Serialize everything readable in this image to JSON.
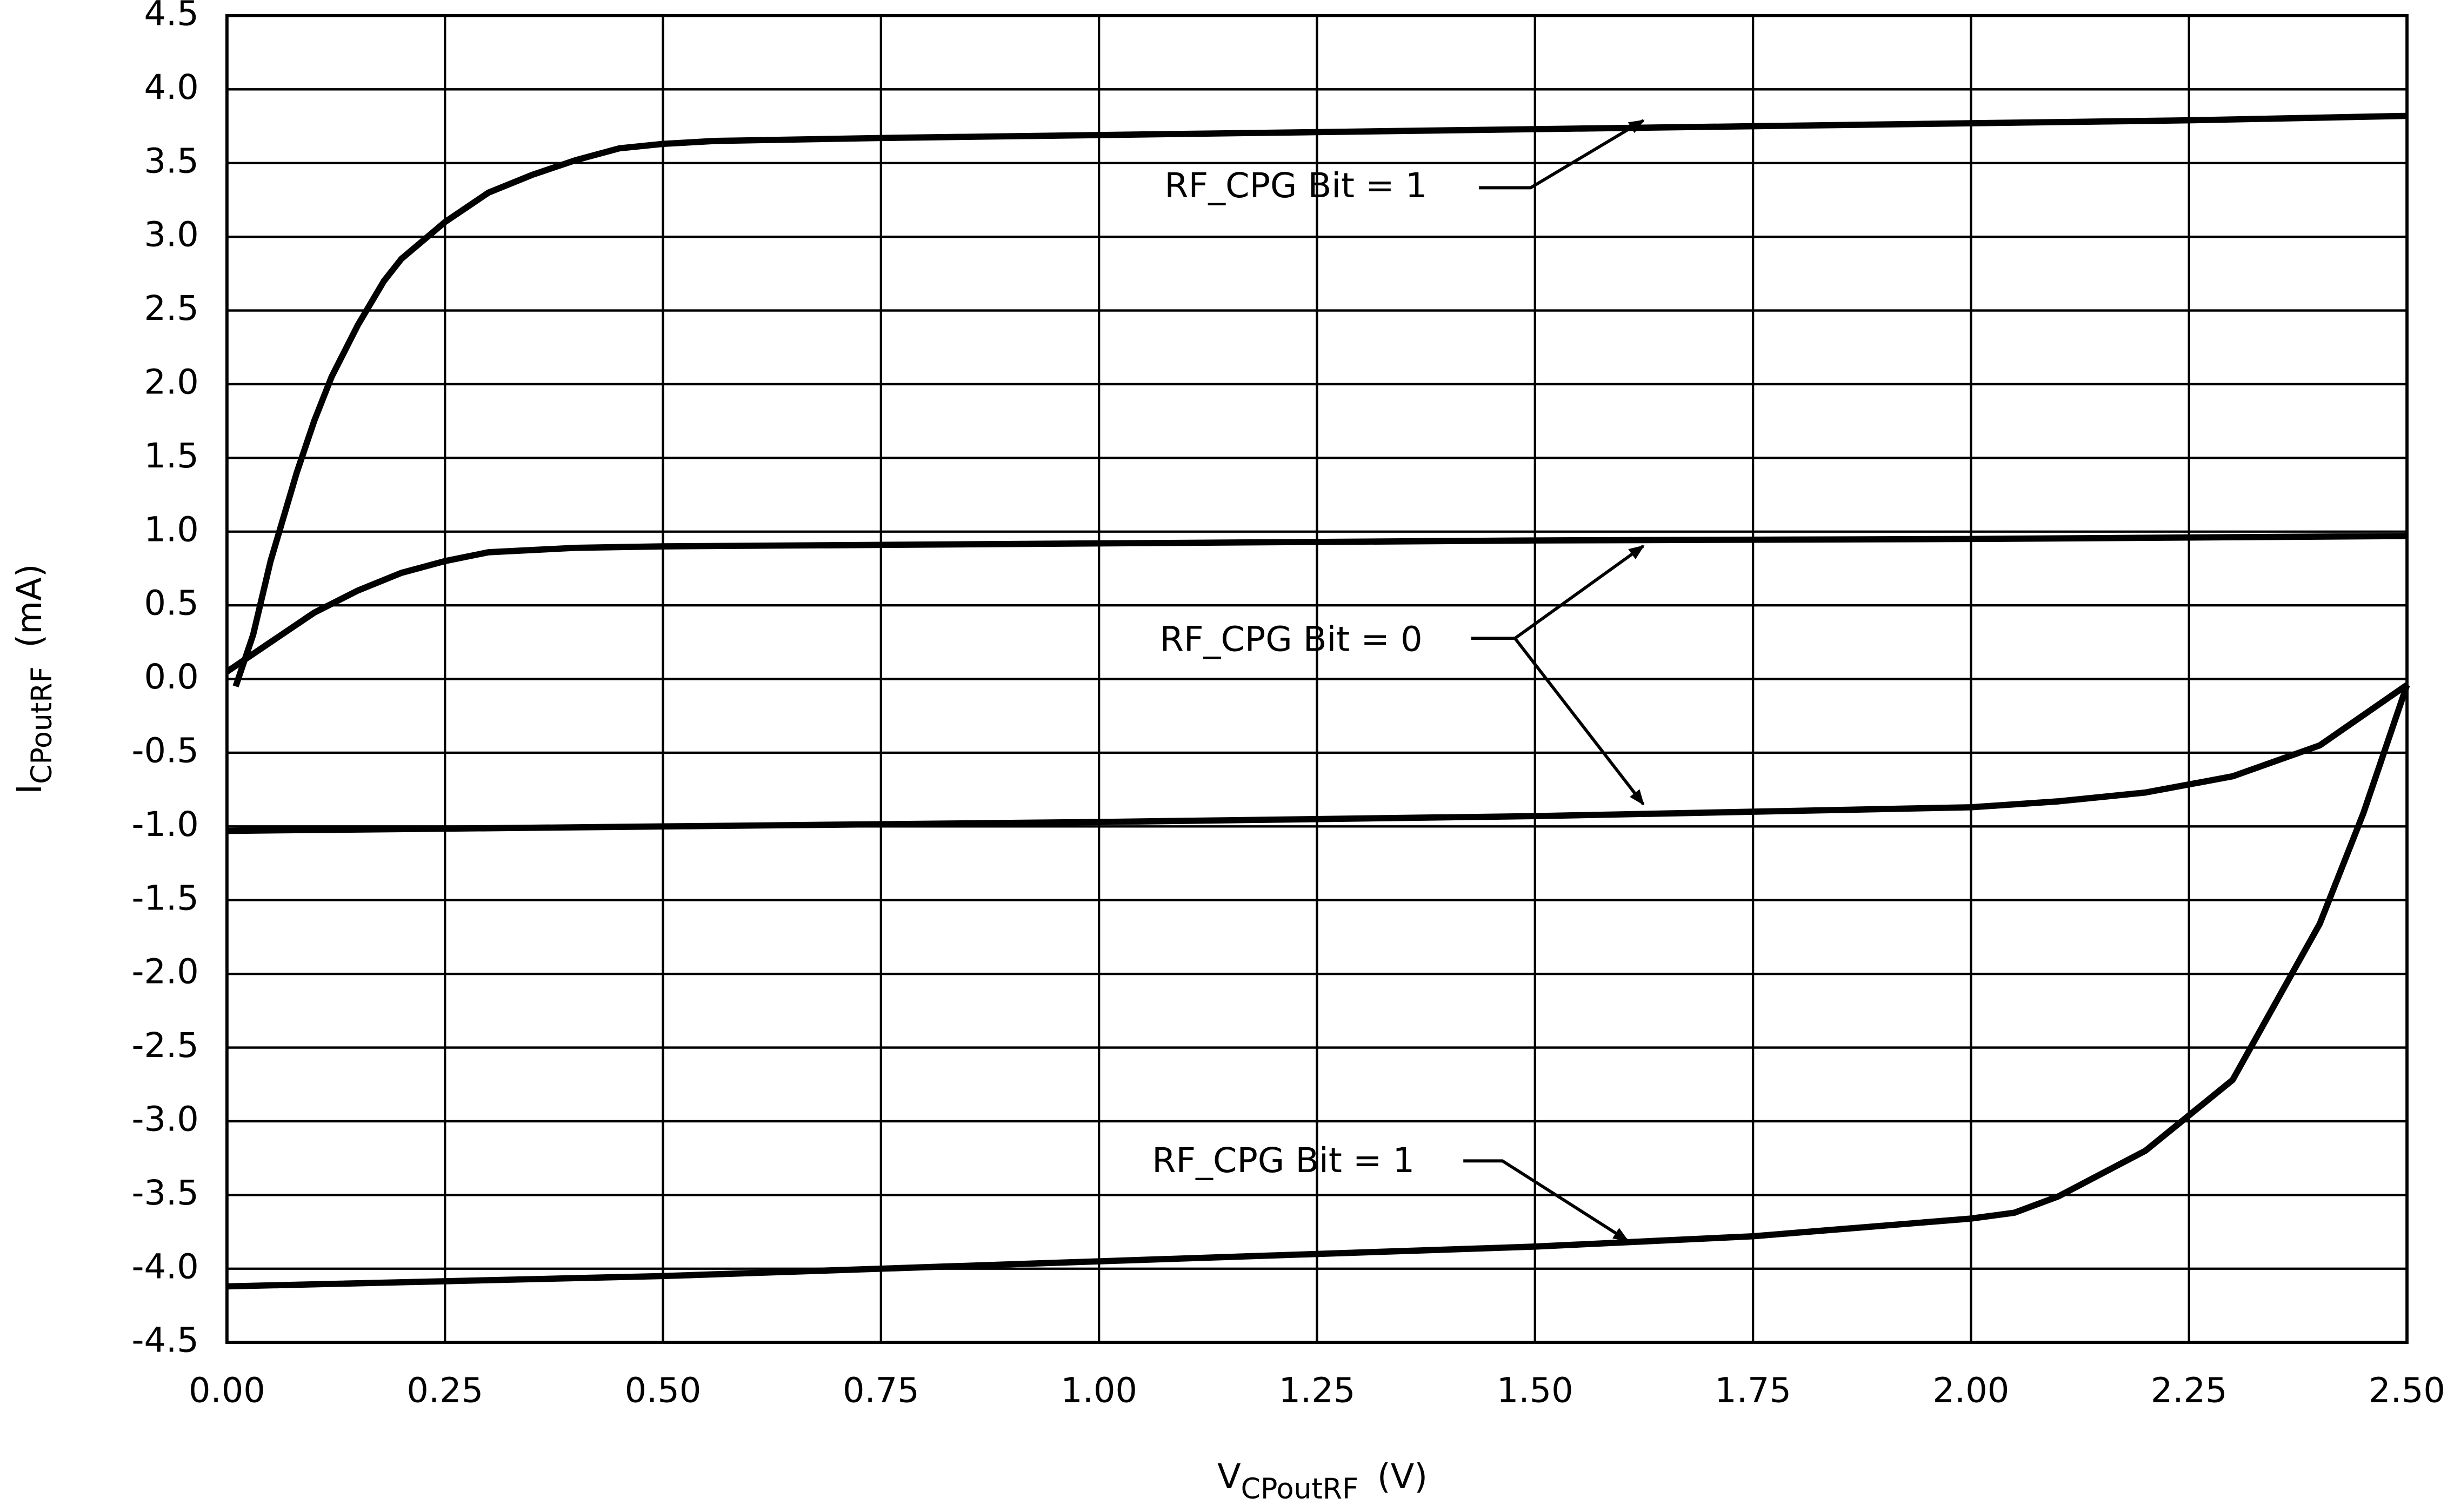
{
  "chart_data": {
    "type": "line",
    "xlabel": {
      "main": "V",
      "sub": "CPoutRF",
      "unit": "(V)"
    },
    "ylabel": {
      "main": "I",
      "sub": "CPoutRF",
      "unit": "(mA)"
    },
    "xlim": [
      0,
      2.5
    ],
    "xticks": [
      {
        "value": 0,
        "label": "0.00"
      },
      0.25,
      {
        "value": 0.5,
        "label": "0.50"
      },
      0.75,
      {
        "value": 1,
        "label": "1.00"
      },
      1.25,
      {
        "value": 1.5,
        "label": "1.50"
      },
      1.75,
      {
        "value": 2,
        "label": "2.00"
      },
      2.25,
      {
        "value": 2.5,
        "label": "2.50"
      }
    ],
    "ylim": [
      -4.5,
      4.5
    ],
    "yticks": [
      -4.5,
      {
        "value": -4,
        "label": "-4.0"
      },
      -3.5,
      {
        "value": -3,
        "label": "-3.0"
      },
      -2.5,
      {
        "value": -2,
        "label": "-2.0"
      },
      -1.5,
      {
        "value": -1,
        "label": "-1.0"
      },
      -0.5,
      {
        "value": 0,
        "label": "0.0"
      },
      0.5,
      {
        "value": 1,
        "label": "1.0"
      },
      1.5,
      {
        "value": 2,
        "label": "2.0"
      },
      2.5,
      {
        "value": 3,
        "label": "3.0"
      },
      3.5,
      {
        "value": 4,
        "label": "4.0"
      },
      4.5
    ],
    "grid": true,
    "series": [
      {
        "color": "#000000",
        "x": [
          0.01,
          0.03,
          0.05,
          0.08,
          0.1,
          0.12,
          0.15,
          0.18,
          0.2,
          0.25,
          0.3,
          0.35,
          0.4,
          0.45,
          0.5,
          0.56,
          0.75,
          1.0,
          1.25,
          1.5,
          1.75,
          2.0,
          2.25,
          2.5
        ],
        "values": [
          -0.05,
          0.3,
          0.8,
          1.4,
          1.75,
          2.05,
          2.4,
          2.7,
          2.85,
          3.1,
          3.3,
          3.42,
          3.52,
          3.6,
          3.63,
          3.65,
          3.67,
          3.69,
          3.71,
          3.73,
          3.75,
          3.77,
          3.79,
          3.82
        ]
      },
      {
        "color": "#000000",
        "x": [
          0,
          0.05,
          0.1,
          0.15,
          0.2,
          0.25,
          0.3,
          0.4,
          0.5,
          1.0,
          1.5,
          2.0,
          2.5
        ],
        "values": [
          0.05,
          0.25,
          0.45,
          0.6,
          0.72,
          0.8,
          0.86,
          0.89,
          0.9,
          0.92,
          0.94,
          0.95,
          0.97
        ]
      },
      {
        "color": "#000000",
        "x": [
          0,
          0.5,
          1.0,
          1.5,
          1.75,
          2.0,
          2.1,
          2.2,
          2.3,
          2.4,
          2.5
        ],
        "values": [
          -1.03,
          -1.0,
          -0.97,
          -0.93,
          -0.9,
          -0.87,
          -0.83,
          -0.77,
          -0.66,
          -0.45,
          -0.04
        ]
      },
      {
        "color": "#000000",
        "x": [
          0,
          0.5,
          1.0,
          1.5,
          1.75,
          2.0,
          2.05,
          2.1,
          2.2,
          2.3,
          2.4,
          2.45,
          2.5
        ],
        "values": [
          -4.12,
          -4.05,
          -3.95,
          -3.85,
          -3.78,
          -3.66,
          -3.62,
          -3.51,
          -3.2,
          -2.72,
          -1.66,
          -0.91,
          -0.04
        ]
      }
    ],
    "annotations": [
      "RF_CPG Bit = 1",
      "RF_CPG Bit = 0",
      "RF_CPG Bit = 1"
    ]
  }
}
